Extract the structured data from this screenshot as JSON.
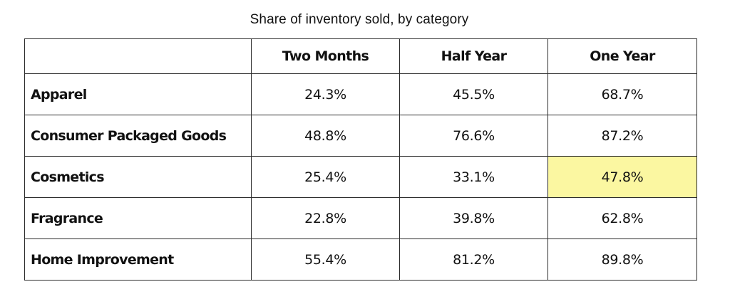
{
  "chart_data": {
    "type": "table",
    "title": "Share of inventory sold, by category",
    "columns": [
      "",
      "Two Months",
      "Half Year",
      "One Year"
    ],
    "rows": [
      {
        "category": "Apparel",
        "values": [
          "24.3%",
          "45.5%",
          "68.7%"
        ]
      },
      {
        "category": "Consumer Packaged Goods",
        "values": [
          "48.8%",
          "76.6%",
          "87.2%"
        ]
      },
      {
        "category": "Cosmetics",
        "values": [
          "25.4%",
          "33.1%",
          "47.8%"
        ]
      },
      {
        "category": "Fragrance",
        "values": [
          "22.8%",
          "39.8%",
          "62.8%"
        ]
      },
      {
        "category": "Home Improvement",
        "values": [
          "55.4%",
          "81.2%",
          "89.8%"
        ]
      }
    ],
    "highlight": {
      "row": 2,
      "column": 2,
      "color": "#fbf7a1"
    }
  }
}
